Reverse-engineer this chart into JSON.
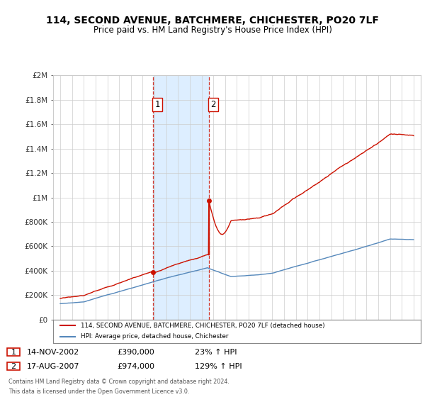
{
  "title": "114, SECOND AVENUE, BATCHMERE, CHICHESTER, PO20 7LF",
  "subtitle": "Price paid vs. HM Land Registry's House Price Index (HPI)",
  "ylim": [
    0,
    2000000
  ],
  "sale1_date": 2002.87,
  "sale1_price": 390000,
  "sale2_date": 2007.62,
  "sale2_price": 974000,
  "legend_line1": "114, SECOND AVENUE, BATCHMERE, CHICHESTER, PO20 7LF (detached house)",
  "legend_line2": "HPI: Average price, detached house, Chichester",
  "footer1": "Contains HM Land Registry data © Crown copyright and database right 2024.",
  "footer2": "This data is licensed under the Open Government Licence v3.0.",
  "hpi_color": "#5588bb",
  "price_color": "#cc1100",
  "shade_color": "#ddeeff",
  "vline_color": "#cc1100",
  "ann1_date": "14-NOV-2002",
  "ann1_price": "£390,000",
  "ann1_hpi": "23% ↑ HPI",
  "ann2_date": "17-AUG-2007",
  "ann2_price": "£974,000",
  "ann2_hpi": "129% ↑ HPI"
}
